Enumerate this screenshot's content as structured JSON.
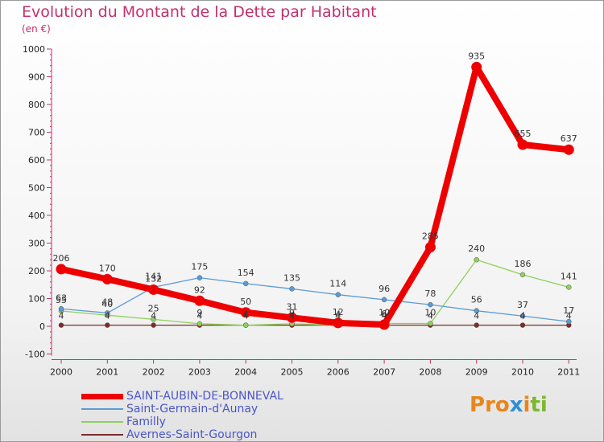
{
  "title": "Evolution du Montant de la Dette par Habitant",
  "subtitle": "(en €)",
  "logo": {
    "text": "Proxiti",
    "letters": [
      "P",
      "r",
      "o",
      "x",
      "i",
      "t",
      "i"
    ],
    "colors": [
      "#e8861c",
      "#e8861c",
      "#e8861c",
      "#2f8fd6",
      "#e8861c",
      "#7cb82f",
      "#7cb82f"
    ]
  },
  "chart_data": {
    "type": "line",
    "categories": [
      "2000",
      "2001",
      "2002",
      "2003",
      "2004",
      "2005",
      "2006",
      "2007",
      "2008",
      "2009",
      "2010",
      "2011"
    ],
    "ylim": [
      -100,
      1000
    ],
    "yticks": [
      "-100",
      "0",
      "100",
      "200",
      "300",
      "400",
      "500",
      "600",
      "700",
      "800",
      "900",
      "1000"
    ],
    "grid": false,
    "legend_position": "bottom-left",
    "series": [
      {
        "name": "SAINT-AUBIN-DE-BONNEVAL",
        "color": "#ee0000",
        "values": [
          206,
          170,
          132,
          92,
          50,
          31,
          12,
          6,
          285,
          935,
          655,
          637
        ]
      },
      {
        "name": "Saint-Germain-d'Aunay",
        "color": "#5b9bd5",
        "values": [
          63,
          48,
          141,
          175,
          154,
          135,
          114,
          96,
          78,
          56,
          37,
          17
        ]
      },
      {
        "name": "Familly",
        "color": "#8fd05a",
        "values": [
          55,
          40,
          25,
          9,
          4,
          9,
          4,
          10,
          10,
          240,
          186,
          141
        ]
      },
      {
        "name": "Avernes-Saint-Gourgon",
        "color": "#7a2d2d",
        "values": [
          4,
          4,
          4,
          4,
          4,
          4,
          4,
          4,
          4,
          4,
          4,
          4
        ]
      }
    ]
  }
}
